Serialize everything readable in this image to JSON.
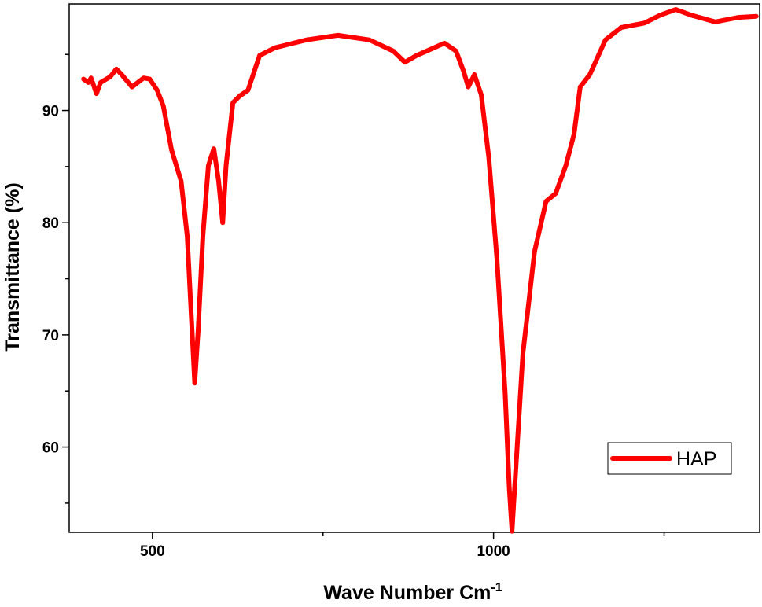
{
  "chart_data": {
    "type": "line",
    "x_label": {
      "text": "Wave Number Cm",
      "superscript": "-1"
    },
    "y_label": "Transmittance (%)",
    "xlim": [
      378,
      1390
    ],
    "ylim": [
      52.4,
      99.5
    ],
    "xticks": [
      500,
      1000
    ],
    "xminor": [
      750,
      1250
    ],
    "yticks": [
      60,
      70,
      80,
      90
    ],
    "yminor": [
      55,
      65,
      75,
      85,
      95
    ],
    "legend": "lower right",
    "x": [
      399,
      406,
      410,
      418,
      424,
      438,
      447,
      455,
      470,
      487,
      496,
      507,
      516,
      528,
      542,
      551,
      558,
      562,
      567,
      574,
      582,
      590,
      597,
      603,
      608,
      618,
      628,
      640,
      657,
      680,
      726,
      772,
      818,
      853,
      870,
      887,
      928,
      945,
      956,
      963,
      972,
      982,
      993,
      1005,
      1017,
      1023,
      1027,
      1031,
      1043,
      1060,
      1077,
      1091,
      1106,
      1118,
      1127,
      1141,
      1164,
      1187,
      1221,
      1244,
      1267,
      1290,
      1325,
      1359,
      1385
    ],
    "series": [
      {
        "name": "HAP",
        "color": "#ff0000",
        "values": [
          92.8,
          92.5,
          92.9,
          91.5,
          92.5,
          93.0,
          93.7,
          93.2,
          92.1,
          92.9,
          92.8,
          91.8,
          90.4,
          86.5,
          83.7,
          78.8,
          70.4,
          65.7,
          70.4,
          78.8,
          85.1,
          86.6,
          83.7,
          80.0,
          85.1,
          90.7,
          91.3,
          91.8,
          94.9,
          95.6,
          96.3,
          96.7,
          96.3,
          95.3,
          94.3,
          94.9,
          96.0,
          95.3,
          93.5,
          92.1,
          93.2,
          91.4,
          85.8,
          76.7,
          64.8,
          56.4,
          52.5,
          56.4,
          68.3,
          77.4,
          81.9,
          82.6,
          85.1,
          87.9,
          92.1,
          93.2,
          96.3,
          97.4,
          97.8,
          98.5,
          99.0,
          98.5,
          97.9,
          98.3,
          98.4
        ]
      }
    ]
  }
}
